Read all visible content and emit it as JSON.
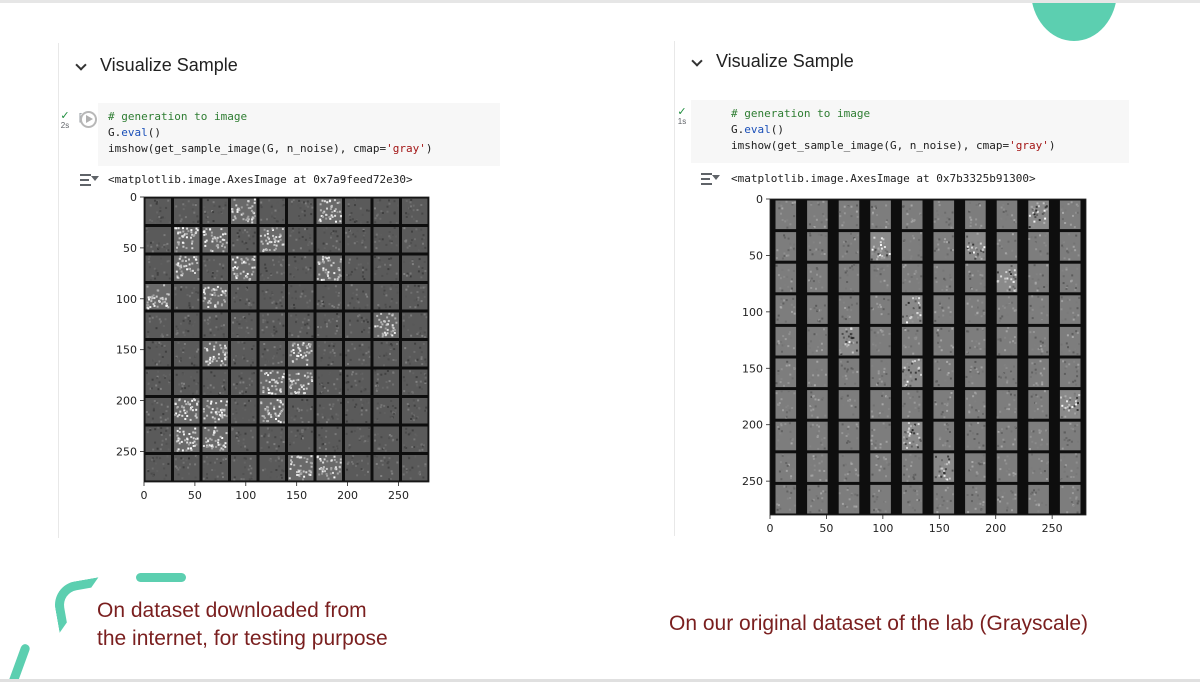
{
  "left": {
    "section_title": "Visualize Sample",
    "exec_time": "2s",
    "code": {
      "comment": "# generation to image",
      "line2_obj": "G.",
      "line2_method": "eval",
      "line2_rest": "()",
      "line3_pre": "imshow(get_sample_image(G, n_noise), cmap=",
      "line3_str": "'gray'",
      "line3_post": ")"
    },
    "output": "<matplotlib.image.AxesImage at 0x7a9feed72e30>",
    "caption_line1": "On dataset downloaded from",
    "caption_line2": "the internet, for testing purpose"
  },
  "right": {
    "section_title": "Visualize Sample",
    "exec_time": "1s",
    "code": {
      "comment": "# generation to image",
      "line2_obj": "G.",
      "line2_method": "eval",
      "line2_rest": "()",
      "line3_pre": "imshow(get_sample_image(G, n_noise), cmap=",
      "line3_str": "'gray'",
      "line3_post": ")"
    },
    "output": "<matplotlib.image.AxesImage at 0x7b3325b91300>",
    "caption": "On our original dataset of the lab (Grayscale)"
  },
  "chart_data": [
    {
      "type": "heatmap",
      "grid_rows": 10,
      "grid_cols": 10,
      "xlim": [
        0,
        280
      ],
      "ylim": [
        280,
        0
      ],
      "x_ticks": [
        "0",
        "50",
        "100",
        "150",
        "200",
        "250"
      ],
      "y_ticks": [
        "0",
        "50",
        "100",
        "150",
        "200",
        "250"
      ],
      "colormap": "gray"
    },
    {
      "type": "heatmap",
      "grid_rows": 10,
      "grid_cols": 10,
      "xlim": [
        0,
        280
      ],
      "ylim": [
        280,
        0
      ],
      "x_ticks": [
        "0",
        "50",
        "100",
        "150",
        "200",
        "250"
      ],
      "y_ticks": [
        "0",
        "50",
        "100",
        "150",
        "200",
        "250"
      ],
      "colormap": "gray"
    }
  ],
  "colors": {
    "accent": "#5ccfb0",
    "caption": "#7a1f1f"
  }
}
